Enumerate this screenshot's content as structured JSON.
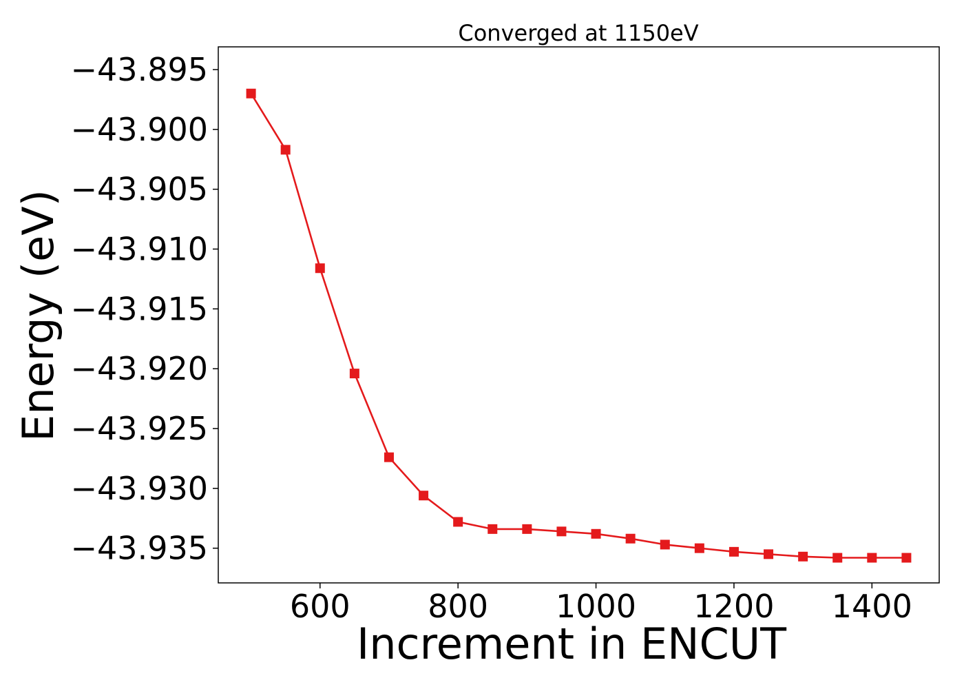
{
  "chart_data": {
    "type": "line",
    "title": "Converged at 1150eV",
    "xlabel": "Increment in ENCUT",
    "ylabel": "Energy (eV)",
    "xlim": [
      452.5,
      1497.5
    ],
    "ylim": [
      -43.9379,
      -43.8931
    ],
    "x_ticks": [
      600,
      800,
      1000,
      1200,
      1400
    ],
    "x_tick_labels": [
      "600",
      "800",
      "1000",
      "1200",
      "1400"
    ],
    "y_ticks": [
      -43.895,
      -43.9,
      -43.905,
      -43.91,
      -43.915,
      -43.92,
      -43.925,
      -43.93,
      -43.935
    ],
    "y_tick_labels": [
      "−43.895",
      "−43.900",
      "−43.905",
      "−43.910",
      "−43.915",
      "−43.920",
      "−43.925",
      "−43.930",
      "−43.935"
    ],
    "grid": false,
    "series": [
      {
        "color": "#e41a1c",
        "marker": "square",
        "x": [
          500,
          550,
          600,
          650,
          700,
          750,
          800,
          850,
          900,
          950,
          1000,
          1050,
          1100,
          1150,
          1200,
          1250,
          1300,
          1350,
          1400,
          1450
        ],
        "values": [
          -43.897,
          -43.9017,
          -43.9116,
          -43.9204,
          -43.9274,
          -43.9306,
          -43.9328,
          -43.9334,
          -43.9334,
          -43.9336,
          -43.9338,
          -43.9342,
          -43.9347,
          -43.935,
          -43.9353,
          -43.9355,
          -43.9357,
          -43.9358,
          -43.9358,
          -43.9358
        ]
      }
    ]
  }
}
